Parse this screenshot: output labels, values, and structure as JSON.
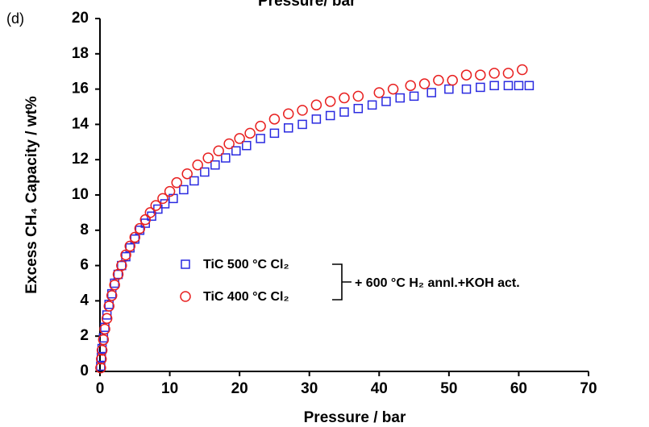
{
  "chart_data": {
    "type": "scatter",
    "panel_label": "(d)",
    "top_label": "Pressure/ bar",
    "x_label": "Pressure / bar",
    "y_label": "Excess CH₄ Capacity / wt%",
    "annotation": "+ 600 °C H₂ annl.+KOH act.",
    "xlim": [
      0,
      70
    ],
    "ylim": [
      0,
      20
    ],
    "xticks": [
      0,
      10,
      20,
      30,
      40,
      50,
      60,
      70
    ],
    "yticks": [
      0,
      2,
      4,
      6,
      8,
      10,
      12,
      14,
      16,
      18,
      20
    ],
    "legend_position": "center-left",
    "series": [
      {
        "name": "TiC 500 °C Cl₂",
        "color": "#2a2ae0",
        "marker": "square",
        "x": [
          0.1,
          0.2,
          0.3,
          0.5,
          0.7,
          1,
          1.3,
          1.7,
          2.1,
          2.6,
          3.1,
          3.7,
          4.3,
          5,
          5.7,
          6.5,
          7.4,
          8.3,
          9.3,
          10.5,
          12,
          13.5,
          15,
          16.5,
          18,
          19.5,
          21,
          23,
          25,
          27,
          29,
          31,
          33,
          35,
          37,
          39,
          41,
          43,
          45,
          47.5,
          50,
          52.5,
          54.5,
          56.5,
          58.5,
          60,
          61.5
        ],
        "values": [
          0.3,
          0.8,
          1.3,
          1.9,
          2.5,
          3.2,
          3.8,
          4.4,
          5.0,
          5.5,
          6.0,
          6.5,
          7.0,
          7.5,
          8.0,
          8.4,
          8.8,
          9.2,
          9.5,
          9.8,
          10.3,
          10.8,
          11.3,
          11.7,
          12.1,
          12.5,
          12.8,
          13.2,
          13.5,
          13.8,
          14.0,
          14.3,
          14.5,
          14.7,
          14.9,
          15.1,
          15.3,
          15.5,
          15.6,
          15.8,
          16.0,
          16.0,
          16.1,
          16.2,
          16.2,
          16.2,
          16.2
        ]
      },
      {
        "name": "TiC 400 °C Cl₂",
        "color": "#e82020",
        "marker": "circle",
        "x": [
          0.1,
          0.2,
          0.3,
          0.5,
          0.7,
          1,
          1.3,
          1.7,
          2.1,
          2.6,
          3.1,
          3.7,
          4.3,
          5,
          5.7,
          6.5,
          7.2,
          8,
          9,
          10,
          11,
          12.5,
          14,
          15.5,
          17,
          18.5,
          20,
          21.5,
          23,
          25,
          27,
          29,
          31,
          33,
          35,
          37,
          40,
          42,
          44.5,
          46.5,
          48.5,
          50.5,
          52.5,
          54.5,
          56.5,
          58.5,
          60.5
        ],
        "values": [
          0.2,
          0.7,
          1.2,
          1.8,
          2.4,
          3.0,
          3.7,
          4.3,
          4.9,
          5.5,
          6.0,
          6.6,
          7.1,
          7.6,
          8.1,
          8.6,
          9.0,
          9.4,
          9.8,
          10.2,
          10.7,
          11.2,
          11.7,
          12.1,
          12.5,
          12.9,
          13.2,
          13.5,
          13.9,
          14.3,
          14.6,
          14.8,
          15.1,
          15.3,
          15.5,
          15.6,
          15.8,
          16.0,
          16.2,
          16.3,
          16.5,
          16.5,
          16.8,
          16.8,
          16.9,
          16.9,
          17.1
        ]
      }
    ]
  }
}
